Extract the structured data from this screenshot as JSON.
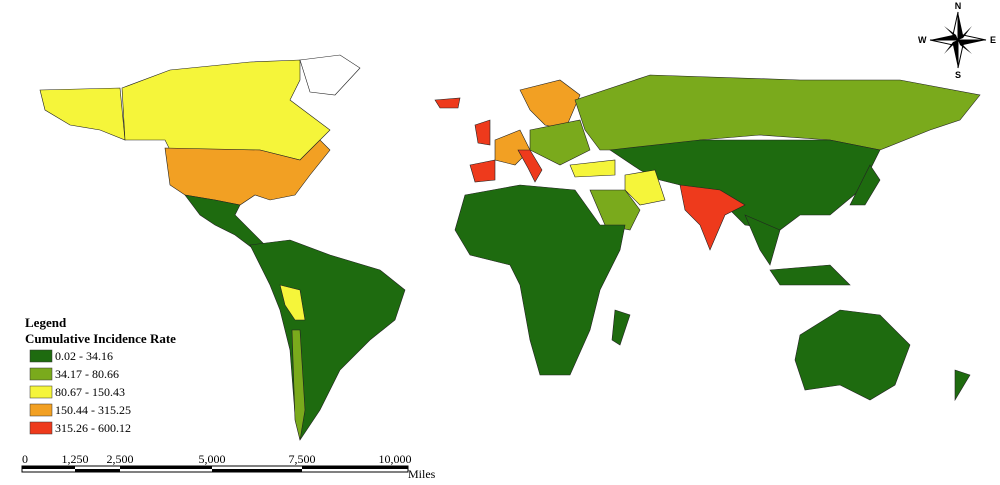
{
  "legend": {
    "heading": "Legend",
    "title": "Cumulative Incidence Rate",
    "classes": [
      {
        "label": "0.02 - 34.16",
        "color": "#1e6b0f"
      },
      {
        "label": "34.17 - 80.66",
        "color": "#7aaa1c"
      },
      {
        "label": "80.67 - 150.43",
        "color": "#f5f53a"
      },
      {
        "label": "150.44 - 315.25",
        "color": "#f2a023"
      },
      {
        "label": "315.26 - 600.12",
        "color": "#ee3a1c"
      }
    ]
  },
  "scale_bar": {
    "labels": [
      "0",
      "1,250",
      "2,500",
      "5,000",
      "7,500",
      "10,000"
    ],
    "unit": "Miles"
  },
  "compass": {
    "north": "N",
    "south": "S",
    "east": "E",
    "west": "W"
  }
}
